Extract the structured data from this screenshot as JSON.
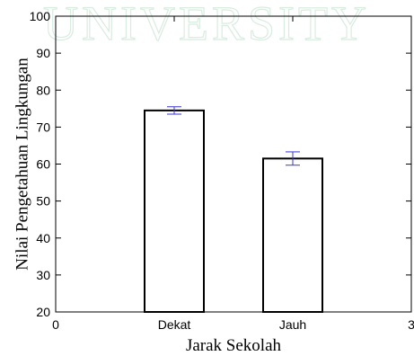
{
  "watermark_text": "UNIVERSITY",
  "chart_data": {
    "type": "bar",
    "x": [
      1,
      2
    ],
    "categories": [
      "Dekat",
      "Jauh"
    ],
    "values": [
      74.5,
      61.5
    ],
    "errors": [
      1.0,
      1.8
    ],
    "xlabel": "Jarak Sekolah",
    "ylabel": "Nilai Pengetahuan Lingkungan",
    "xlim": [
      0,
      3
    ],
    "ylim": [
      20,
      100
    ],
    "xticks": [
      0,
      1,
      2,
      3
    ],
    "xtick_labels": [
      "0",
      "Dekat",
      "Jauh",
      "3"
    ],
    "yticks": [
      20,
      30,
      40,
      50,
      60,
      70,
      80,
      90,
      100
    ],
    "grid": false,
    "colors": {
      "bar_fill": "#ffffff",
      "bar_edge": "#000000",
      "error_bar": "#3b35d6"
    }
  }
}
